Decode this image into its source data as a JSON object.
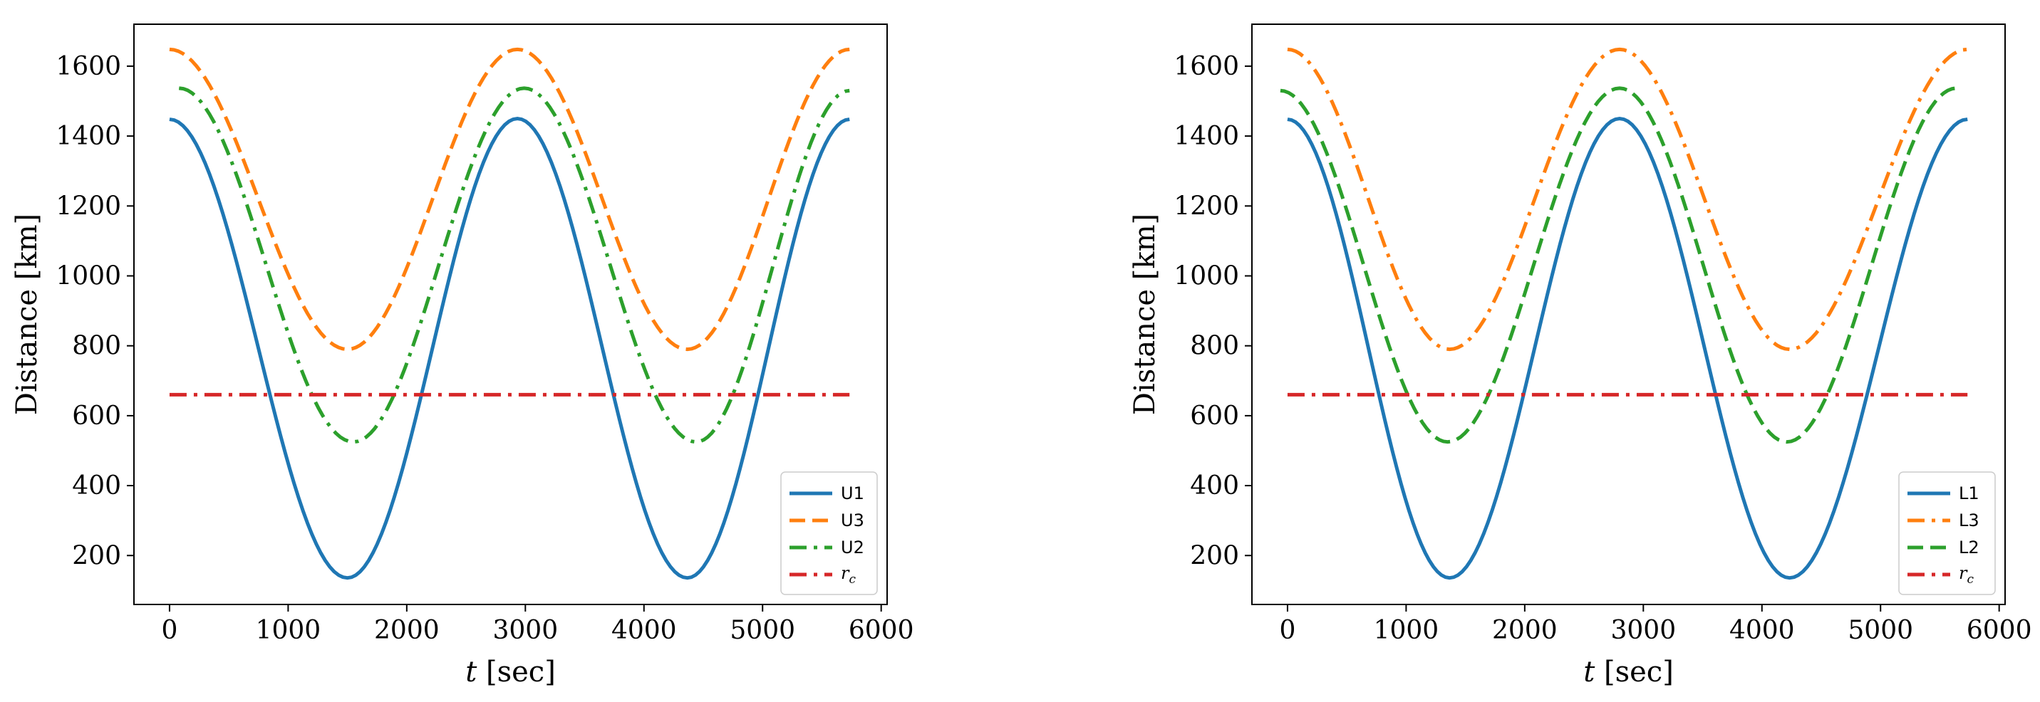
{
  "chart_data": [
    {
      "type": "line",
      "title": "",
      "xlabel_var": "t",
      "xlabel_unit": "[sec]",
      "ylabel": "Distance [km]",
      "xlim": [
        -300,
        6050
      ],
      "ylim": [
        60,
        1720
      ],
      "xticks": [
        0,
        1000,
        2000,
        3000,
        4000,
        5000,
        6000
      ],
      "yticks": [
        200,
        400,
        600,
        800,
        1000,
        1200,
        1400,
        1600
      ],
      "legend_position": "lower right",
      "series": [
        {
          "name": "U1",
          "label": "U1",
          "color": "#1f77b4",
          "style": "solid",
          "x": [
            0,
            1500,
            2933,
            4366,
            5733
          ],
          "y": [
            1448,
            136,
            1450,
            136,
            1448
          ]
        },
        {
          "name": "U3",
          "label": "U3",
          "color": "#ff7f0e",
          "style": "dashed",
          "x": [
            0,
            1500,
            2933,
            4366,
            5733
          ],
          "y": [
            1648,
            790,
            1648,
            790,
            1648
          ]
        },
        {
          "name": "U2",
          "label": "U2",
          "color": "#2ca02c",
          "style": "dashdot",
          "x": [
            80,
            1550,
            2990,
            4440,
            5733
          ],
          "y": [
            1537,
            525,
            1537,
            525,
            1530
          ]
        },
        {
          "name": "rc",
          "label_base": "r",
          "label_sub": "c",
          "color": "#d62728",
          "style": "dashdot",
          "x": [
            0,
            5733
          ],
          "y": [
            660,
            660
          ]
        }
      ]
    },
    {
      "type": "line",
      "title": "",
      "xlabel_var": "t",
      "xlabel_unit": "[sec]",
      "ylabel": "Distance [km]",
      "xlim": [
        -300,
        6050
      ],
      "ylim": [
        60,
        1720
      ],
      "xticks": [
        0,
        1000,
        2000,
        3000,
        4000,
        5000,
        6000
      ],
      "yticks": [
        200,
        400,
        600,
        800,
        1000,
        1200,
        1400,
        1600
      ],
      "legend_position": "lower right",
      "series": [
        {
          "name": "L1",
          "label": "L1",
          "color": "#1f77b4",
          "style": "solid",
          "x": [
            0,
            1366,
            2800,
            4233,
            5733
          ],
          "y": [
            1448,
            136,
            1450,
            136,
            1448
          ]
        },
        {
          "name": "L3",
          "label": "L3",
          "color": "#ff7f0e",
          "style": "dashdot",
          "x": [
            0,
            1366,
            2800,
            4233,
            5733
          ],
          "y": [
            1648,
            790,
            1648,
            790,
            1648
          ]
        },
        {
          "name": "L2",
          "label": "L2",
          "color": "#2ca02c",
          "style": "dashed",
          "x": [
            -60,
            1350,
            2800,
            4210,
            5640
          ],
          "y": [
            1530,
            525,
            1537,
            525,
            1537
          ]
        },
        {
          "name": "rc",
          "label_base": "r",
          "label_sub": "c",
          "color": "#d62728",
          "style": "dashdot",
          "x": [
            0,
            5733
          ],
          "y": [
            660,
            660
          ]
        }
      ]
    }
  ]
}
